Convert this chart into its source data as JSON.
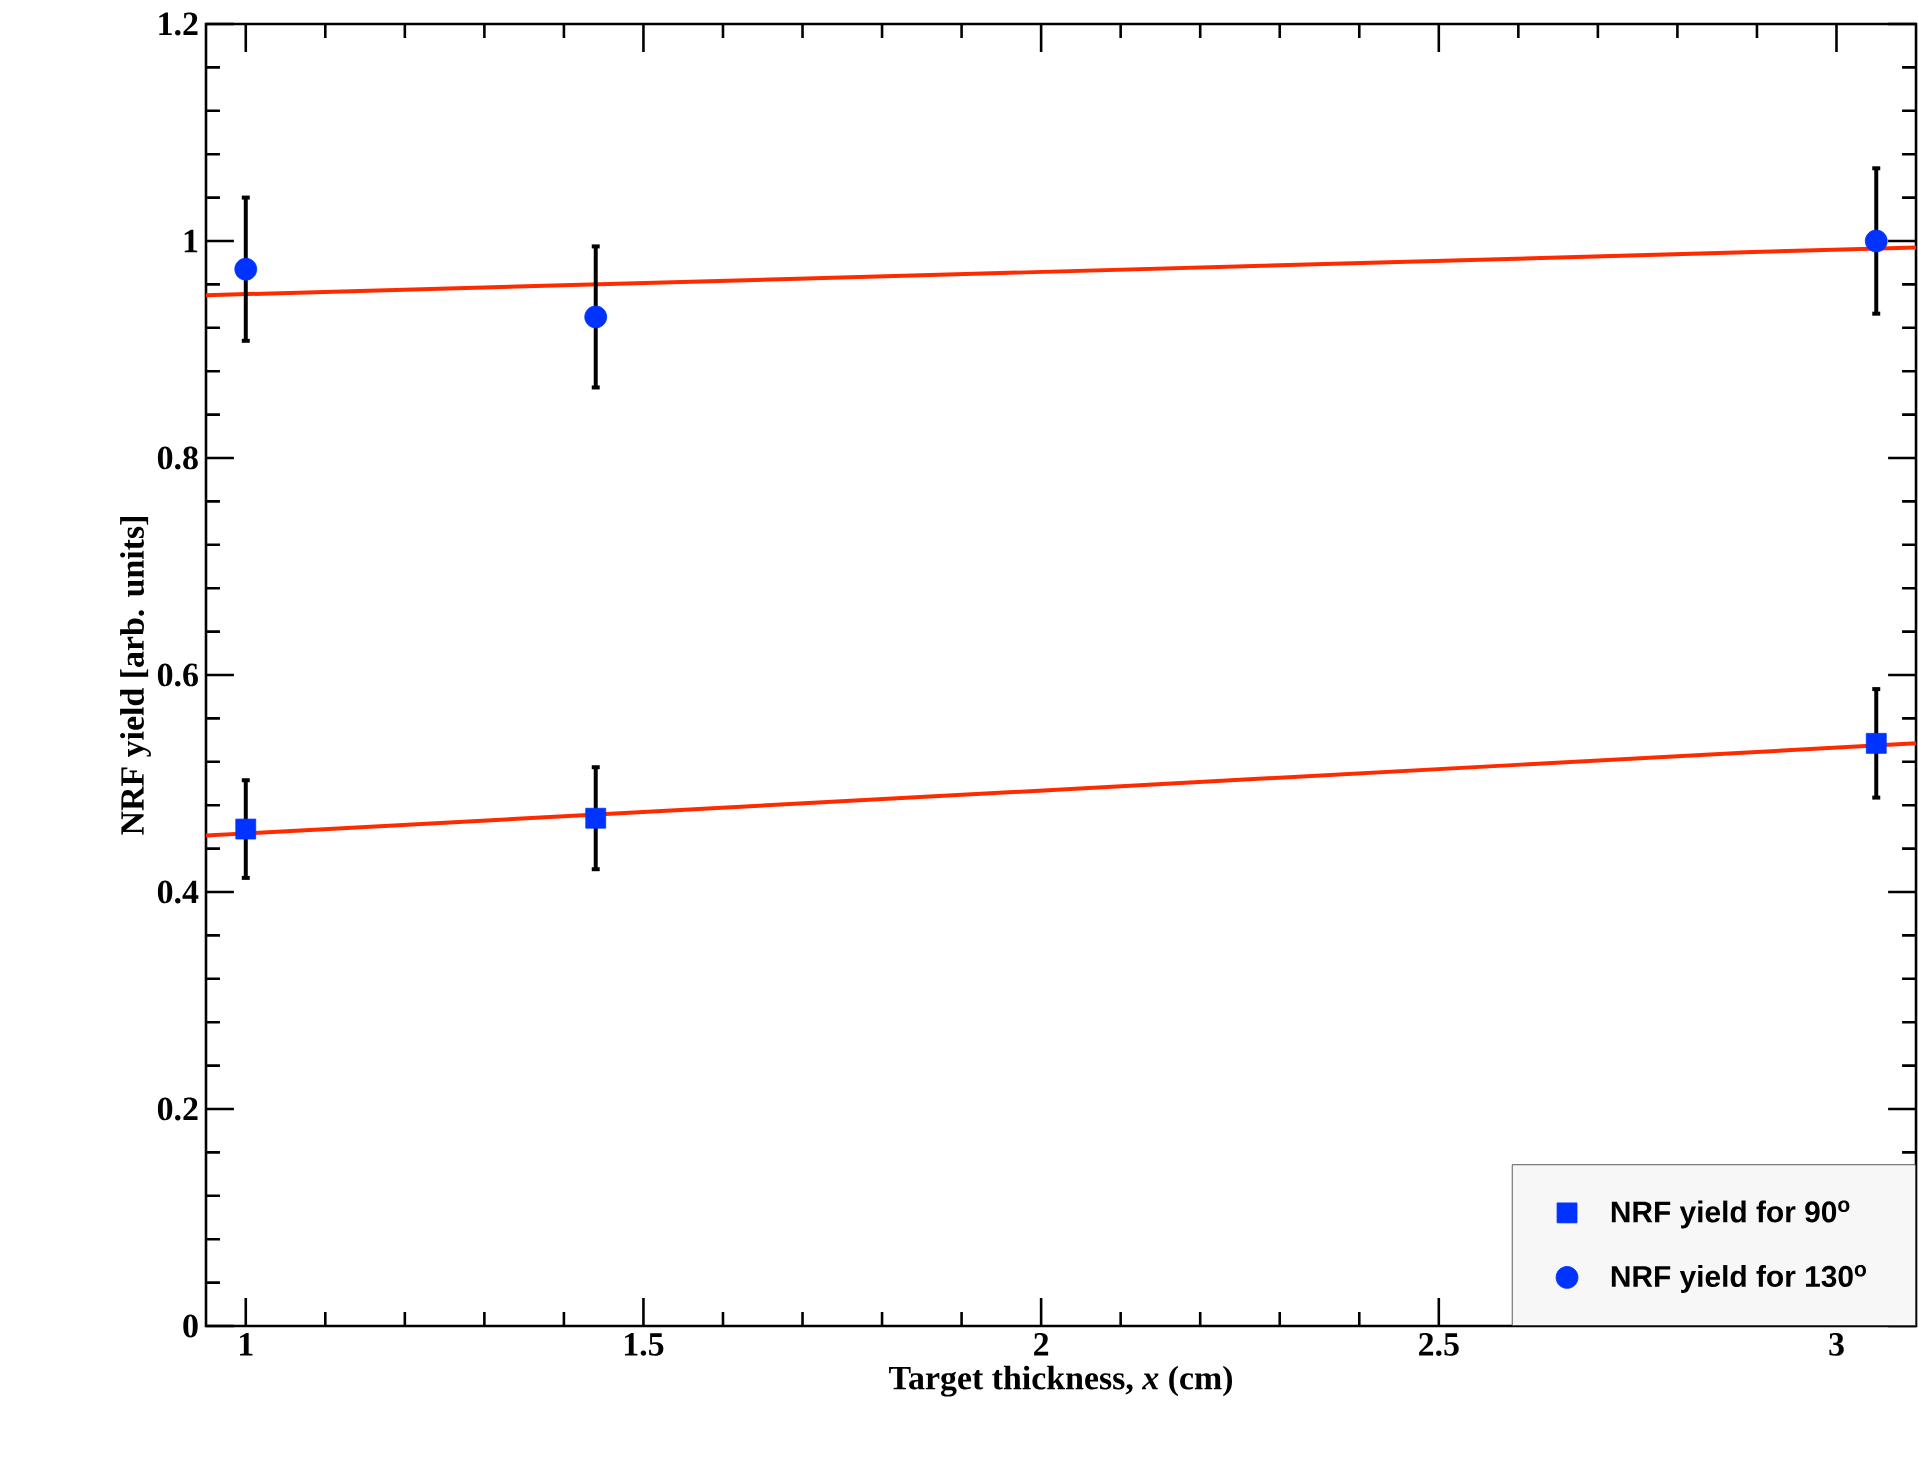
{
  "chart_data": {
    "type": "scatter",
    "xlabel": "Target thickness, *x* (cm)",
    "ylabel": "NRF yield [arb. units]",
    "xlim": [
      0.95,
      3.1
    ],
    "ylim": [
      0,
      1.2
    ],
    "xticks": [
      1,
      1.5,
      2,
      2.5,
      3
    ],
    "yticks": [
      0,
      0.2,
      0.4,
      0.6,
      0.8,
      1,
      1.2
    ],
    "legend": "bottom right",
    "grid": false,
    "series": [
      {
        "name": "NRF yield for 90$^{o}$",
        "marker": "square",
        "color": "#0033ff",
        "x": [
          1,
          1.44,
          3.05
        ],
        "values": [
          0.458,
          0.468,
          0.537
        ],
        "errors": [
          0.045,
          0.047,
          0.05
        ]
      },
      {
        "name": "NRF yield for 130$^{o}$",
        "marker": "circle",
        "color": "#0033ff",
        "x": [
          1,
          1.44,
          3.05
        ],
        "values": [
          0.974,
          0.93,
          1.0
        ],
        "errors": [
          0.066,
          0.065,
          0.067
        ]
      },
      {
        "type": "line",
        "marker": "none",
        "line_style": "solid",
        "color": "#ff2a00",
        "x": [
          0.95,
          3.1
        ],
        "values": [
          0.452,
          0.537
        ]
      },
      {
        "type": "line",
        "marker": "none",
        "line_style": "solid",
        "color": "#ff2a00",
        "x": [
          0.95,
          3.1
        ],
        "values": [
          0.95,
          0.994
        ]
      }
    ]
  }
}
